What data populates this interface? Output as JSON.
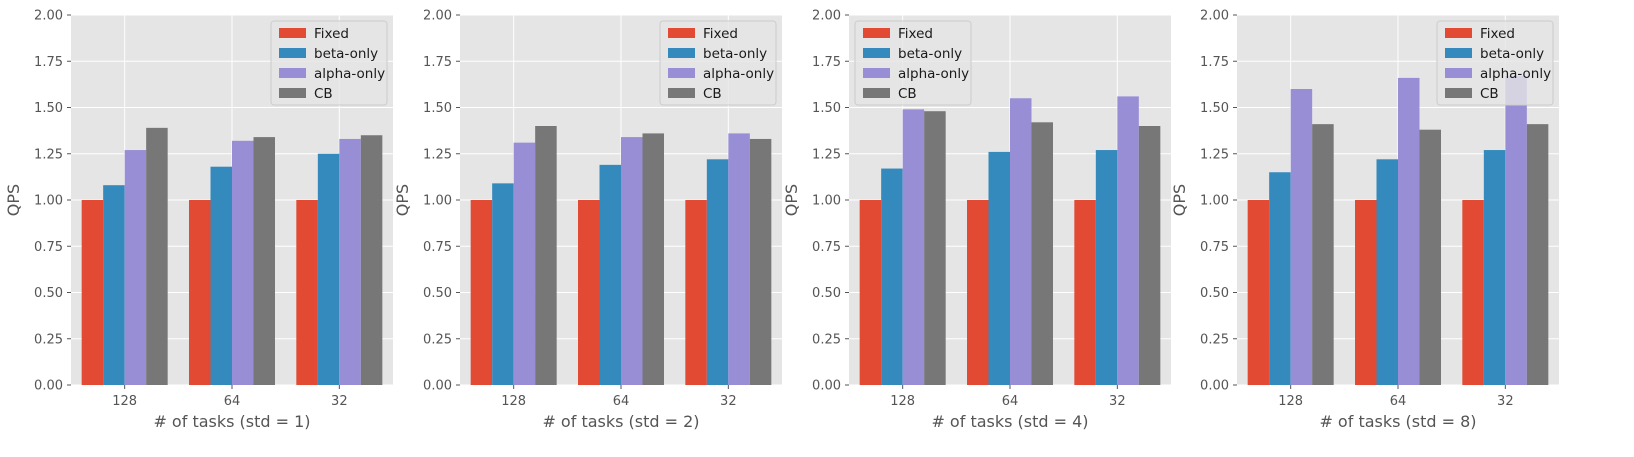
{
  "chart_data": [
    {
      "type": "bar",
      "categories": [
        "128",
        "64",
        "32"
      ],
      "series": [
        {
          "name": "Fixed",
          "values": [
            1.0,
            1.0,
            1.0
          ]
        },
        {
          "name": "beta-only",
          "values": [
            1.08,
            1.18,
            1.25
          ]
        },
        {
          "name": "alpha-only",
          "values": [
            1.27,
            1.32,
            1.33
          ]
        },
        {
          "name": "CB",
          "values": [
            1.39,
            1.34,
            1.35
          ]
        }
      ],
      "xlabel": "# of tasks (std = 1)",
      "ylabel": "QPS",
      "ylim": [
        0,
        2.0
      ],
      "yticks": [
        "0.00",
        "0.25",
        "0.50",
        "0.75",
        "1.00",
        "1.25",
        "1.50",
        "1.75",
        "2.00"
      ],
      "legend": "top-right",
      "grid": true
    },
    {
      "type": "bar",
      "categories": [
        "128",
        "64",
        "32"
      ],
      "series": [
        {
          "name": "Fixed",
          "values": [
            1.0,
            1.0,
            1.0
          ]
        },
        {
          "name": "beta-only",
          "values": [
            1.09,
            1.19,
            1.22
          ]
        },
        {
          "name": "alpha-only",
          "values": [
            1.31,
            1.34,
            1.36
          ]
        },
        {
          "name": "CB",
          "values": [
            1.4,
            1.36,
            1.33
          ]
        }
      ],
      "xlabel": "# of tasks (std = 2)",
      "ylabel": "QPS",
      "ylim": [
        0,
        2.0
      ],
      "yticks": [
        "0.00",
        "0.25",
        "0.50",
        "0.75",
        "1.00",
        "1.25",
        "1.50",
        "1.75",
        "2.00"
      ],
      "legend": "top-right",
      "grid": true
    },
    {
      "type": "bar",
      "categories": [
        "128",
        "64",
        "32"
      ],
      "series": [
        {
          "name": "Fixed",
          "values": [
            1.0,
            1.0,
            1.0
          ]
        },
        {
          "name": "beta-only",
          "values": [
            1.17,
            1.26,
            1.27
          ]
        },
        {
          "name": "alpha-only",
          "values": [
            1.49,
            1.55,
            1.56
          ]
        },
        {
          "name": "CB",
          "values": [
            1.48,
            1.42,
            1.4
          ]
        }
      ],
      "xlabel": "# of tasks (std = 4)",
      "ylabel": "QPS",
      "ylim": [
        0,
        2.0
      ],
      "yticks": [
        "0.00",
        "0.25",
        "0.50",
        "0.75",
        "1.00",
        "1.25",
        "1.50",
        "1.75",
        "2.00"
      ],
      "legend": "top-left",
      "grid": true
    },
    {
      "type": "bar",
      "categories": [
        "128",
        "64",
        "32"
      ],
      "series": [
        {
          "name": "Fixed",
          "values": [
            1.0,
            1.0,
            1.0
          ]
        },
        {
          "name": "beta-only",
          "values": [
            1.15,
            1.22,
            1.27
          ]
        },
        {
          "name": "alpha-only",
          "values": [
            1.6,
            1.66,
            1.67
          ]
        },
        {
          "name": "CB",
          "values": [
            1.41,
            1.38,
            1.41
          ]
        }
      ],
      "xlabel": "# of tasks (std = 8)",
      "ylabel": "QPS",
      "ylim": [
        0,
        2.0
      ],
      "yticks": [
        "0.00",
        "0.25",
        "0.50",
        "0.75",
        "1.00",
        "1.25",
        "1.50",
        "1.75",
        "2.00"
      ],
      "legend": "top-right",
      "grid": true
    }
  ],
  "colors": {
    "Fixed": "#E24A33",
    "beta-only": "#348ABD",
    "alpha-only": "#988ED5",
    "CB": "#777777",
    "plot_background": "#E5E5E5",
    "grid": "#FFFFFF",
    "text": "#555555"
  }
}
